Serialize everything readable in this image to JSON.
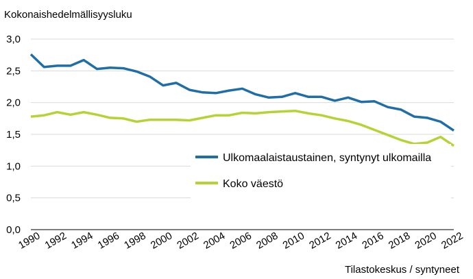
{
  "chart_data": {
    "type": "line",
    "title": "",
    "ylabel": "Kokonaishedelmällisyysluku",
    "xlabel": "",
    "source": "Tilastokeskus / syntyneet",
    "ylim": [
      0,
      3.0
    ],
    "yticks": [
      "0,0",
      "0,5",
      "1,0",
      "1,5",
      "2,0",
      "2,5",
      "3,0"
    ],
    "xlim": [
      1990,
      2022
    ],
    "xticks": [
      "1990",
      "1992",
      "1994",
      "1996",
      "1998",
      "2000",
      "2002",
      "2004",
      "2006",
      "2008",
      "2010",
      "2012",
      "2014",
      "2016",
      "2018",
      "2020",
      "2022"
    ],
    "grid": "horizontal",
    "legend_position": "right",
    "x": [
      1990,
      1991,
      1992,
      1993,
      1994,
      1995,
      1996,
      1997,
      1998,
      1999,
      2000,
      2001,
      2002,
      2003,
      2004,
      2005,
      2006,
      2007,
      2008,
      2009,
      2010,
      2011,
      2012,
      2013,
      2014,
      2015,
      2016,
      2017,
      2018,
      2019,
      2020,
      2021,
      2022
    ],
    "series": [
      {
        "name": "Ulkomaalaistaustainen, syntynyt ulkomailla",
        "color": "#1f6ea8",
        "values": [
          2.76,
          2.56,
          2.58,
          2.58,
          2.67,
          2.53,
          2.55,
          2.54,
          2.49,
          2.41,
          2.27,
          2.31,
          2.2,
          2.16,
          2.15,
          2.19,
          2.22,
          2.13,
          2.08,
          2.09,
          2.15,
          2.09,
          2.09,
          2.03,
          2.08,
          2.01,
          2.02,
          1.93,
          1.89,
          1.78,
          1.76,
          1.7,
          1.56
        ]
      },
      {
        "name": "Koko väestö",
        "color": "#b5d334",
        "values": [
          1.78,
          1.8,
          1.85,
          1.81,
          1.85,
          1.81,
          1.76,
          1.75,
          1.7,
          1.73,
          1.73,
          1.73,
          1.72,
          1.76,
          1.8,
          1.8,
          1.84,
          1.83,
          1.85,
          1.86,
          1.87,
          1.83,
          1.8,
          1.75,
          1.71,
          1.65,
          1.57,
          1.49,
          1.41,
          1.35,
          1.37,
          1.46,
          1.32
        ]
      }
    ]
  }
}
